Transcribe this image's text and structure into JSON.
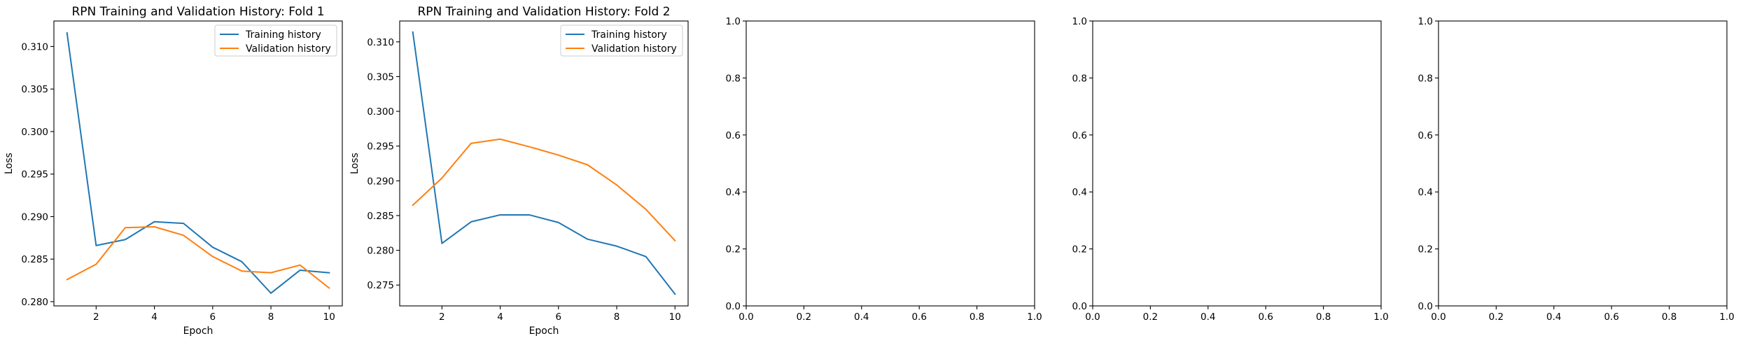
{
  "chart_data": [
    {
      "type": "line",
      "title": "RPN Training and Validation History: Fold 1",
      "xlabel": "Epoch",
      "ylabel": "Loss",
      "x": [
        1,
        2,
        3,
        4,
        5,
        6,
        7,
        8,
        9,
        10
      ],
      "xlim": [
        0.55,
        10.45
      ],
      "ylim": [
        0.2795,
        0.313
      ],
      "xticks": [
        2,
        4,
        6,
        8,
        10
      ],
      "yticks": [
        0.28,
        0.285,
        0.29,
        0.295,
        0.3,
        0.305,
        0.31
      ],
      "xtick_labels": [
        "2",
        "4",
        "6",
        "8",
        "10"
      ],
      "ytick_labels": [
        "0.280",
        "0.285",
        "0.290",
        "0.295",
        "0.300",
        "0.305",
        "0.310"
      ],
      "legend": "top-right",
      "grid": false,
      "series": [
        {
          "name": "Training history",
          "color": "#1f77b4",
          "values": [
            0.3116,
            0.2866,
            0.2873,
            0.2894,
            0.2892,
            0.2864,
            0.2847,
            0.281,
            0.2837,
            0.2834
          ]
        },
        {
          "name": "Validation history",
          "color": "#ff7f0e",
          "values": [
            0.2826,
            0.2844,
            0.2887,
            0.2888,
            0.2878,
            0.2853,
            0.2836,
            0.2834,
            0.2843,
            0.2816
          ]
        }
      ]
    },
    {
      "type": "line",
      "title": "RPN Training and Validation History: Fold 2",
      "xlabel": "Epoch",
      "ylabel": "Loss",
      "x": [
        1,
        2,
        3,
        4,
        5,
        6,
        7,
        8,
        9,
        10
      ],
      "xlim": [
        0.55,
        10.45
      ],
      "ylim": [
        0.272,
        0.313
      ],
      "xticks": [
        2,
        4,
        6,
        8,
        10
      ],
      "yticks": [
        0.275,
        0.28,
        0.285,
        0.29,
        0.295,
        0.3,
        0.305,
        0.31
      ],
      "xtick_labels": [
        "2",
        "4",
        "6",
        "8",
        "10"
      ],
      "ytick_labels": [
        "0.275",
        "0.280",
        "0.285",
        "0.290",
        "0.295",
        "0.300",
        "0.305",
        "0.310"
      ],
      "legend": "top-right",
      "grid": false,
      "series": [
        {
          "name": "Training history",
          "color": "#1f77b4",
          "values": [
            0.3114,
            0.281,
            0.2841,
            0.2851,
            0.2851,
            0.284,
            0.2816,
            0.2806,
            0.2791,
            0.2737
          ]
        },
        {
          "name": "Validation history",
          "color": "#ff7f0e",
          "values": [
            0.2865,
            0.2904,
            0.2954,
            0.296,
            0.2949,
            0.2937,
            0.2923,
            0.2894,
            0.2859,
            0.2814
          ]
        }
      ]
    },
    {
      "type": "line",
      "title": "",
      "xlabel": "",
      "ylabel": "",
      "xlim": [
        0,
        1
      ],
      "ylim": [
        0,
        1
      ],
      "xticks": [
        0.0,
        0.2,
        0.4,
        0.6,
        0.8,
        1.0
      ],
      "yticks": [
        0.0,
        0.2,
        0.4,
        0.6,
        0.8,
        1.0
      ],
      "xtick_labels": [
        "0.0",
        "0.2",
        "0.4",
        "0.6",
        "0.8",
        "1.0"
      ],
      "ytick_labels": [
        "0.0",
        "0.2",
        "0.4",
        "0.6",
        "0.8",
        "1.0"
      ],
      "grid": false,
      "series": []
    },
    {
      "type": "line",
      "title": "",
      "xlabel": "",
      "ylabel": "",
      "xlim": [
        0,
        1
      ],
      "ylim": [
        0,
        1
      ],
      "xticks": [
        0.0,
        0.2,
        0.4,
        0.6,
        0.8,
        1.0
      ],
      "yticks": [
        0.0,
        0.2,
        0.4,
        0.6,
        0.8,
        1.0
      ],
      "xtick_labels": [
        "0.0",
        "0.2",
        "0.4",
        "0.6",
        "0.8",
        "1.0"
      ],
      "ytick_labels": [
        "0.0",
        "0.2",
        "0.4",
        "0.6",
        "0.8",
        "1.0"
      ],
      "grid": false,
      "series": []
    },
    {
      "type": "line",
      "title": "",
      "xlabel": "",
      "ylabel": "",
      "xlim": [
        0,
        1
      ],
      "ylim": [
        0,
        1
      ],
      "xticks": [
        0.0,
        0.2,
        0.4,
        0.6,
        0.8,
        1.0
      ],
      "yticks": [
        0.0,
        0.2,
        0.4,
        0.6,
        0.8,
        1.0
      ],
      "xtick_labels": [
        "0.0",
        "0.2",
        "0.4",
        "0.6",
        "0.8",
        "1.0"
      ],
      "ytick_labels": [
        "0.0",
        "0.2",
        "0.4",
        "0.6",
        "0.8",
        "1.0"
      ],
      "grid": false,
      "series": []
    }
  ]
}
